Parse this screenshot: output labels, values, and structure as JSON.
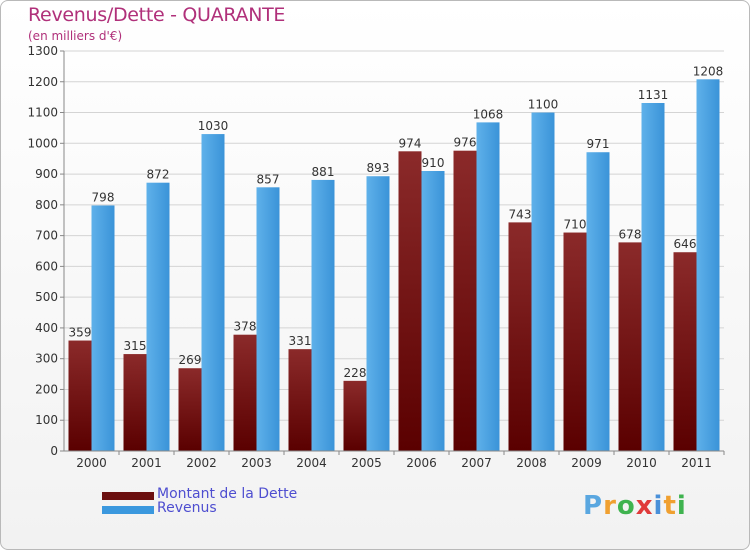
{
  "chart_data": {
    "type": "bar",
    "title": "Revenus/Dette - QUARANTE",
    "subtitle": "(en milliers d'€)",
    "xlabel": "",
    "ylabel": "",
    "ylim": [
      0,
      1300
    ],
    "yticks": [
      "0",
      "100",
      "200",
      "300",
      "400",
      "500",
      "600",
      "700",
      "800",
      "900",
      "1000",
      "1100",
      "1200",
      "1300"
    ],
    "categories": [
      "2000",
      "2001",
      "2002",
      "2003",
      "2004",
      "2005",
      "2006",
      "2007",
      "2008",
      "2009",
      "2010",
      "2011"
    ],
    "series": [
      {
        "name": "Montant de la Dette",
        "color": "#7a1616",
        "values": [
          359,
          315,
          269,
          378,
          331,
          228,
          974,
          976,
          743,
          710,
          678,
          646
        ],
        "labels": [
          "359",
          "315",
          "269",
          "378",
          "331",
          "228",
          "974",
          "976",
          "743",
          "710",
          "678",
          "646"
        ]
      },
      {
        "name": "Revenus",
        "color": "#3b98de",
        "values": [
          798,
          872,
          1030,
          857,
          881,
          893,
          910,
          1068,
          1100,
          971,
          1131,
          1208
        ],
        "labels": [
          "798",
          "872",
          "1030",
          "857",
          "881",
          "893",
          "910",
          "1068",
          "1100",
          "971",
          "1131",
          "1208"
        ]
      }
    ],
    "grid": true,
    "legend": "bottom-left"
  },
  "legend": {
    "items": [
      {
        "label": "Montant de la Dette",
        "color": "#6b0f0f"
      },
      {
        "label": "Revenus",
        "color": "#3b98de"
      }
    ]
  },
  "logo": {
    "text": "Proxiti",
    "letters": [
      "P",
      "r",
      "o",
      "x",
      "i",
      "t",
      "i"
    ],
    "colors": [
      "#5aa7e0",
      "#f0a030",
      "#3fb34f",
      "#e03a3a",
      "#4a90d9",
      "#f0a030",
      "#3fb34f"
    ]
  }
}
